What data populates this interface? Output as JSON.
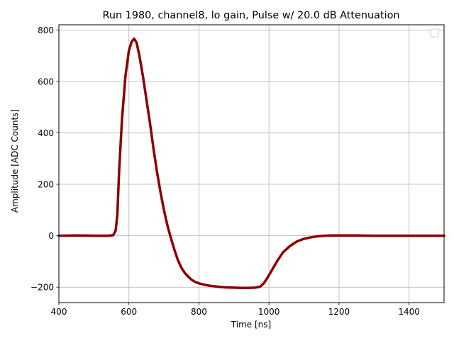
{
  "chart_data": {
    "type": "line",
    "title": "Run 1980, channel8, lo gain, Pulse w/ 20.0 dB Attenuation",
    "xlabel": "Time [ns]",
    "ylabel": "Amplitude [ADC Counts]",
    "xlim": [
      400,
      1500
    ],
    "ylim": [
      -260,
      820
    ],
    "xticks": [
      400,
      600,
      800,
      1000,
      1200,
      1400
    ],
    "yticks": [
      -200,
      0,
      200,
      400,
      600,
      800
    ],
    "xtick_labels": [
      "400",
      "600",
      "800",
      "1000",
      "1200",
      "1400"
    ],
    "ytick_labels": [
      "−200",
      "0",
      "200",
      "400",
      "600",
      "800"
    ],
    "grid": true,
    "legend": "top-right (empty)",
    "line_color": "#8b0000",
    "series": [
      {
        "x": [
          400,
          450,
          500,
          540,
          555,
          562,
          567,
          572,
          580,
          590,
          600,
          608,
          615,
          622,
          630,
          640,
          650,
          660,
          670,
          680,
          690,
          700,
          710,
          720,
          730,
          740,
          750,
          760,
          770,
          780,
          790,
          800,
          820,
          840,
          860,
          880,
          900,
          920,
          940,
          960,
          975,
          985,
          995,
          1010,
          1025,
          1040,
          1060,
          1080,
          1100,
          1120,
          1140,
          1160,
          1180,
          1200,
          1250,
          1300,
          1400,
          1500
        ],
        "y": [
          0,
          1,
          0,
          0,
          2,
          20,
          80,
          250,
          450,
          620,
          720,
          755,
          766,
          750,
          700,
          620,
          530,
          440,
          340,
          250,
          170,
          100,
          40,
          -10,
          -55,
          -95,
          -125,
          -145,
          -160,
          -172,
          -180,
          -185,
          -192,
          -196,
          -199,
          -201,
          -202,
          -203,
          -203,
          -202,
          -198,
          -185,
          -165,
          -130,
          -95,
          -65,
          -40,
          -22,
          -12,
          -6,
          -2,
          0,
          1,
          1,
          1,
          0,
          0,
          0
        ]
      }
    ]
  }
}
